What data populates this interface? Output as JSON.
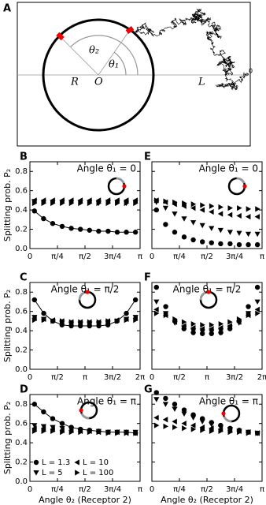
{
  "diagram": {
    "label": "A",
    "R": "R",
    "O": "O",
    "L": "L",
    "theta1": "θ₁",
    "theta2": "θ₂",
    "start": "0"
  },
  "chart_data": [
    {
      "type": "scatter",
      "panel_label": "B",
      "title": "Angle θ₁ = 0",
      "ylabel": "Splitting prob. P₂",
      "x": [
        0.13,
        0.39,
        0.65,
        0.92,
        1.18,
        1.44,
        1.7,
        1.96,
        2.23,
        2.49,
        2.75,
        3.01
      ],
      "xlim": [
        0,
        3.1416
      ],
      "xticks": [
        0,
        {
          "value": 0.7854,
          "label": "π/4"
        },
        {
          "value": 1.5708,
          "label": "π/2"
        },
        {
          "value": 2.3562,
          "label": "3π/4"
        },
        {
          "value": 3.1416,
          "label": "π"
        }
      ],
      "ylim": [
        0,
        0.9
      ],
      "yticks": [
        {
          "value": 0,
          "label": "0.0"
        },
        0.2,
        0.4,
        0.6,
        0.8
      ],
      "ytick_labels": true,
      "series": [
        {
          "marker": "circle",
          "color": "#000000",
          "line": true,
          "values": [
            0.39,
            0.31,
            0.26,
            0.23,
            0.21,
            0.2,
            0.19,
            0.18,
            0.18,
            0.17,
            0.17,
            0.17
          ]
        },
        {
          "marker": "triangle-down",
          "color": "#000000",
          "values": [
            0.49,
            0.48,
            0.48,
            0.48,
            0.48,
            0.48,
            0.48,
            0.47,
            0.48,
            0.48,
            0.47,
            0.48
          ]
        },
        {
          "marker": "triangle-left",
          "color": "#000000",
          "values": [
            0.5,
            0.5,
            0.5,
            0.5,
            0.5,
            0.5,
            0.5,
            0.5,
            0.5,
            0.5,
            0.5,
            0.5
          ]
        },
        {
          "marker": "triangle-right",
          "color": "#000000",
          "values": [
            0.47,
            0.47,
            0.47,
            0.47,
            0.47,
            0.47,
            0.47,
            0.47,
            0.47,
            0.47,
            0.47,
            0.47
          ]
        }
      ]
    },
    {
      "type": "scatter",
      "panel_label": "E",
      "title": "Angle θ₁ = 0",
      "x": [
        0.13,
        0.39,
        0.65,
        0.92,
        1.18,
        1.44,
        1.7,
        1.96,
        2.23,
        2.49,
        2.75,
        3.01
      ],
      "xlim": [
        0,
        3.1416
      ],
      "xticks": [
        0,
        {
          "value": 0.7854,
          "label": "π/4"
        },
        {
          "value": 1.5708,
          "label": "π/2"
        },
        {
          "value": 2.3562,
          "label": "3π/4"
        },
        {
          "value": 3.1416,
          "label": "π"
        }
      ],
      "ylim": [
        0,
        0.9
      ],
      "yticks": [
        0,
        0.2,
        0.4,
        0.6,
        0.8
      ],
      "ytick_labels": false,
      "series": [
        {
          "marker": "circle",
          "color": "#000000",
          "values": [
            0.4,
            0.25,
            0.17,
            0.12,
            0.09,
            0.07,
            0.06,
            0.05,
            0.05,
            0.04,
            0.04,
            0.04
          ]
        },
        {
          "marker": "triangle-down",
          "color": "#000000",
          "values": [
            0.48,
            0.42,
            0.36,
            0.31,
            0.27,
            0.24,
            0.21,
            0.19,
            0.17,
            0.16,
            0.15,
            0.15
          ]
        },
        {
          "marker": "triangle-left",
          "color": "#000000",
          "values": [
            0.5,
            0.48,
            0.46,
            0.44,
            0.42,
            0.4,
            0.38,
            0.36,
            0.35,
            0.34,
            0.33,
            0.33
          ]
        },
        {
          "marker": "triangle-right",
          "color": "#000000",
          "values": [
            0.5,
            0.49,
            0.48,
            0.47,
            0.46,
            0.45,
            0.44,
            0.43,
            0.42,
            0.42,
            0.41,
            0.41
          ]
        }
      ]
    },
    {
      "type": "scatter",
      "panel_label": "C",
      "title": "Angle θ₁ = π/2",
      "ylabel": "Splitting prob. P₂",
      "x": [
        0.26,
        0.79,
        1.31,
        1.83,
        2.36,
        2.88,
        3.4,
        3.93,
        4.45,
        4.97,
        5.5,
        6.02
      ],
      "xlim": [
        0,
        6.2832
      ],
      "xticks": [
        0,
        {
          "value": 1.5708,
          "label": "π/2"
        },
        {
          "value": 3.1416,
          "label": "π"
        },
        {
          "value": 4.7124,
          "label": "3π/2"
        },
        {
          "value": 6.2832,
          "label": "2π"
        }
      ],
      "ylim": [
        0,
        0.9
      ],
      "yticks": [
        {
          "value": 0,
          "label": "0.0"
        },
        0.2,
        0.4,
        0.6,
        0.8
      ],
      "ytick_labels": true,
      "series": [
        {
          "marker": "circle",
          "color": "#000000",
          "line": true,
          "values": [
            0.72,
            0.58,
            0.5,
            0.46,
            0.45,
            0.45,
            0.45,
            0.45,
            0.46,
            0.5,
            0.58,
            0.72
          ]
        },
        {
          "marker": "triangle-down",
          "color": "#000000",
          "values": [
            0.54,
            0.52,
            0.5,
            0.48,
            0.47,
            0.47,
            0.47,
            0.47,
            0.48,
            0.5,
            0.52,
            0.54
          ]
        },
        {
          "marker": "triangle-left",
          "color": "#000000",
          "values": [
            0.53,
            0.52,
            0.51,
            0.5,
            0.49,
            0.49,
            0.49,
            0.49,
            0.5,
            0.51,
            0.52,
            0.53
          ]
        },
        {
          "marker": "triangle-right",
          "color": "#000000",
          "values": [
            0.51,
            0.51,
            0.5,
            0.5,
            0.49,
            0.49,
            0.49,
            0.49,
            0.5,
            0.5,
            0.51,
            0.51
          ]
        }
      ]
    },
    {
      "type": "scatter",
      "panel_label": "F",
      "title": "Angle θ₁ = π/2",
      "x": [
        0.26,
        0.79,
        1.31,
        1.83,
        2.36,
        2.88,
        3.4,
        3.93,
        4.45,
        4.97,
        5.5,
        6.02
      ],
      "xlim": [
        0,
        6.2832
      ],
      "xticks": [
        0,
        {
          "value": 1.5708,
          "label": "π/2"
        },
        {
          "value": 3.1416,
          "label": "π"
        },
        {
          "value": 4.7124,
          "label": "3π/2"
        },
        {
          "value": 6.2832,
          "label": "2π"
        }
      ],
      "ylim": [
        0,
        0.9
      ],
      "yticks": [
        0,
        0.2,
        0.4,
        0.6,
        0.8
      ],
      "ytick_labels": false,
      "series": [
        {
          "marker": "circle",
          "color": "#000000",
          "values": [
            0.85,
            0.65,
            0.5,
            0.42,
            0.38,
            0.37,
            0.37,
            0.38,
            0.42,
            0.5,
            0.65,
            0.85
          ]
        },
        {
          "marker": "triangle-down",
          "color": "#000000",
          "values": [
            0.7,
            0.58,
            0.48,
            0.43,
            0.4,
            0.39,
            0.39,
            0.4,
            0.43,
            0.48,
            0.58,
            0.7
          ]
        },
        {
          "marker": "triangle-left",
          "color": "#000000",
          "values": [
            0.62,
            0.56,
            0.49,
            0.45,
            0.43,
            0.42,
            0.42,
            0.43,
            0.45,
            0.49,
            0.56,
            0.62
          ]
        },
        {
          "marker": "triangle-right",
          "color": "#000000",
          "values": [
            0.58,
            0.56,
            0.52,
            0.49,
            0.47,
            0.46,
            0.46,
            0.47,
            0.49,
            0.52,
            0.56,
            0.58
          ]
        }
      ]
    },
    {
      "type": "scatter",
      "panel_label": "D",
      "title": "Angle θ₁ = π",
      "ylabel": "Splitting prob. P₂",
      "xlabel": "Angle θ₂ (Receptor 2)",
      "x": [
        0.13,
        0.39,
        0.65,
        0.92,
        1.18,
        1.44,
        1.7,
        1.96,
        2.23,
        2.49,
        2.75,
        3.01
      ],
      "xlim": [
        0,
        3.1416
      ],
      "xticks": [
        0,
        {
          "value": 0.7854,
          "label": "π/4"
        },
        {
          "value": 1.5708,
          "label": "π/2"
        },
        {
          "value": 2.3562,
          "label": "3π/4"
        },
        {
          "value": 3.1416,
          "label": "π"
        }
      ],
      "ylim": [
        0,
        0.9
      ],
      "yticks": [
        {
          "value": 0,
          "label": "0.0"
        },
        0.2,
        0.4,
        0.6,
        0.8
      ],
      "ytick_labels": true,
      "legend": "lower left",
      "series": [
        {
          "name": "L = 1.3",
          "marker": "circle",
          "color": "#000000",
          "line": true,
          "values": [
            0.8,
            0.72,
            0.65,
            0.6,
            0.56,
            0.54,
            0.53,
            0.52,
            0.51,
            0.51,
            0.51,
            0.5
          ]
        },
        {
          "name": "L = 5",
          "marker": "triangle-down",
          "color": "#000000",
          "values": [
            0.58,
            0.57,
            0.56,
            0.55,
            0.54,
            0.53,
            0.52,
            0.52,
            0.51,
            0.51,
            0.51,
            0.51
          ]
        },
        {
          "name": "L = 10",
          "marker": "triangle-left",
          "color": "#000000",
          "values": [
            0.55,
            0.55,
            0.54,
            0.53,
            0.53,
            0.52,
            0.52,
            0.51,
            0.51,
            0.51,
            0.5,
            0.5
          ]
        },
        {
          "name": "L = 100",
          "marker": "triangle-right",
          "color": "#000000",
          "values": [
            0.52,
            0.52,
            0.52,
            0.51,
            0.51,
            0.51,
            0.51,
            0.51,
            0.5,
            0.5,
            0.5,
            0.5
          ]
        }
      ]
    },
    {
      "type": "scatter",
      "panel_label": "G",
      "title": "Angle θ₁ = π",
      "xlabel": "Angle θ₂ (Receptor 2)",
      "x": [
        0.13,
        0.39,
        0.65,
        0.92,
        1.18,
        1.44,
        1.7,
        1.96,
        2.23,
        2.49,
        2.75,
        3.01
      ],
      "xlim": [
        0,
        3.1416
      ],
      "xticks": [
        0,
        {
          "value": 0.7854,
          "label": "π/4"
        },
        {
          "value": 1.5708,
          "label": "π/2"
        },
        {
          "value": 2.3562,
          "label": "3π/4"
        },
        {
          "value": 3.1416,
          "label": "π"
        }
      ],
      "ylim": [
        0,
        0.9
      ],
      "yticks": [
        0,
        0.2,
        0.4,
        0.6,
        0.8
      ],
      "ytick_labels": false,
      "series": [
        {
          "marker": "circle",
          "color": "#000000",
          "values": [
            0.92,
            0.86,
            0.8,
            0.74,
            0.69,
            0.65,
            0.61,
            0.58,
            0.55,
            0.53,
            0.51,
            0.5
          ]
        },
        {
          "marker": "triangle-down",
          "color": "#000000",
          "values": [
            0.85,
            0.8,
            0.75,
            0.7,
            0.66,
            0.62,
            0.59,
            0.56,
            0.54,
            0.52,
            0.51,
            0.5
          ]
        },
        {
          "marker": "triangle-left",
          "color": "#000000",
          "values": [
            0.66,
            0.64,
            0.62,
            0.6,
            0.58,
            0.56,
            0.55,
            0.54,
            0.53,
            0.52,
            0.51,
            0.5
          ]
        },
        {
          "marker": "triangle-right",
          "color": "#000000",
          "values": [
            0.58,
            0.57,
            0.56,
            0.55,
            0.54,
            0.53,
            0.52,
            0.52,
            0.51,
            0.51,
            0.5,
            0.5
          ]
        }
      ]
    }
  ]
}
